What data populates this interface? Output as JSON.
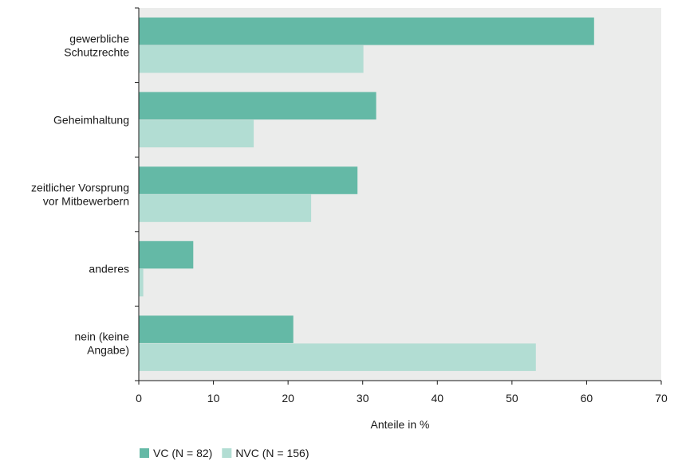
{
  "chart_data": {
    "type": "bar",
    "orientation": "horizontal",
    "categories": [
      [
        "gewerbliche",
        "Schutzrechte"
      ],
      [
        "Geheimhaltung"
      ],
      [
        "zeitlicher Vorsprung",
        "vor Mitbewerbern"
      ],
      [
        "anderes"
      ],
      [
        "nein (keine",
        "Angabe)"
      ]
    ],
    "series": [
      {
        "name": "VC (N = 82)",
        "color": "#64b9a6",
        "values": [
          61.0,
          31.8,
          29.3,
          7.3,
          20.7
        ]
      },
      {
        "name": "NVC (N = 156)",
        "color": "#b2ddd3",
        "values": [
          30.1,
          15.4,
          23.1,
          0.6,
          53.2
        ]
      }
    ],
    "xlabel": "Anteile in %",
    "xlim": [
      0,
      70
    ],
    "xticks": [
      0,
      10,
      20,
      30,
      40,
      50,
      60,
      70
    ],
    "grid": false,
    "legend_position": "bottom-left",
    "plot_background": "#ebeceb"
  }
}
